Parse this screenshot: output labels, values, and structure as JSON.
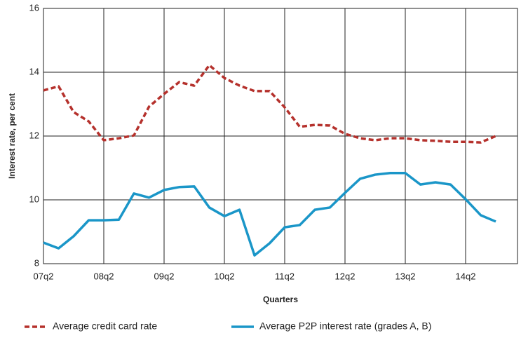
{
  "chart_data": {
    "type": "line",
    "y_label": "Interest rate, per cent",
    "x_label": "Quarters",
    "categories": [
      "07q2",
      null,
      null,
      null,
      "08q2",
      null,
      null,
      null,
      "09q2",
      null,
      null,
      null,
      "10q2",
      null,
      null,
      null,
      "11q2",
      null,
      null,
      null,
      "12q2",
      null,
      null,
      null,
      "13q2",
      null,
      null,
      null,
      "14q2",
      null,
      null
    ],
    "series": [
      {
        "name": "Average credit card rate",
        "color": "#b5312c",
        "dashed": true,
        "values": [
          13.43,
          13.56,
          12.75,
          12.46,
          11.87,
          11.93,
          12.02,
          12.92,
          13.32,
          13.69,
          13.58,
          14.22,
          13.82,
          13.58,
          13.41,
          13.41,
          12.9,
          12.29,
          12.35,
          12.33,
          12.07,
          11.93,
          11.87,
          11.93,
          11.93,
          11.87,
          11.85,
          11.82,
          11.82,
          11.8,
          12.0
        ]
      },
      {
        "name": "Average P2P interest rate (grades A, B)",
        "color": "#1a96c8",
        "dashed": false,
        "values": [
          8.66,
          8.48,
          8.86,
          9.36,
          9.36,
          9.38,
          10.2,
          10.07,
          10.31,
          10.4,
          10.42,
          9.76,
          9.49,
          9.69,
          8.26,
          8.64,
          9.14,
          9.21,
          9.69,
          9.76,
          10.22,
          10.66,
          10.79,
          10.84,
          10.84,
          10.48,
          10.55,
          10.48,
          10.02,
          9.52,
          9.32
        ]
      }
    ],
    "ylim": [
      8,
      16
    ],
    "yticks": [
      8,
      10,
      12,
      14,
      16
    ],
    "grid": true
  }
}
